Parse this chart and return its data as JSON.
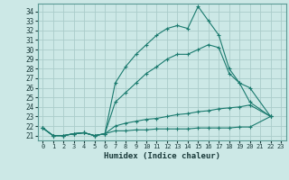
{
  "xlabel": "Humidex (Indice chaleur)",
  "background_color": "#cce8e6",
  "grid_color": "#aaccca",
  "line_color": "#1a7a6e",
  "xlim": [
    -0.5,
    23.5
  ],
  "ylim": [
    20.5,
    34.8
  ],
  "xticks": [
    0,
    1,
    2,
    3,
    4,
    5,
    6,
    7,
    8,
    9,
    10,
    11,
    12,
    13,
    14,
    15,
    16,
    17,
    18,
    19,
    20,
    21,
    22,
    23
  ],
  "yticks": [
    21,
    22,
    23,
    24,
    25,
    26,
    27,
    28,
    29,
    30,
    31,
    32,
    33,
    34
  ],
  "series": [
    {
      "x": [
        0,
        1,
        2,
        3,
        4,
        5,
        6,
        7,
        8,
        9,
        10,
        11,
        12,
        13,
        14,
        15,
        16,
        17,
        18,
        19,
        20,
        22
      ],
      "y": [
        21.8,
        21.0,
        21.0,
        21.2,
        21.3,
        21.0,
        21.2,
        26.5,
        28.2,
        29.5,
        30.5,
        31.5,
        32.2,
        32.5,
        32.2,
        34.5,
        33.0,
        31.5,
        28.0,
        26.5,
        24.5,
        23.0
      ]
    },
    {
      "x": [
        0,
        1,
        2,
        3,
        4,
        5,
        6,
        7,
        8,
        9,
        10,
        11,
        12,
        13,
        14,
        15,
        16,
        17,
        18,
        19,
        20,
        22
      ],
      "y": [
        21.8,
        21.0,
        21.0,
        21.2,
        21.3,
        21.0,
        21.2,
        24.5,
        25.5,
        26.5,
        27.5,
        28.2,
        29.0,
        29.5,
        29.5,
        30.0,
        30.5,
        30.2,
        27.5,
        26.5,
        26.0,
        23.0
      ]
    },
    {
      "x": [
        0,
        1,
        2,
        3,
        4,
        5,
        6,
        7,
        8,
        9,
        10,
        11,
        12,
        13,
        14,
        15,
        16,
        17,
        18,
        19,
        20,
        22
      ],
      "y": [
        21.8,
        21.0,
        21.0,
        21.2,
        21.3,
        21.0,
        21.2,
        22.0,
        22.3,
        22.5,
        22.7,
        22.8,
        23.0,
        23.2,
        23.3,
        23.5,
        23.6,
        23.8,
        23.9,
        24.0,
        24.2,
        23.0
      ]
    },
    {
      "x": [
        0,
        1,
        2,
        3,
        4,
        5,
        6,
        7,
        8,
        9,
        10,
        11,
        12,
        13,
        14,
        15,
        16,
        17,
        18,
        19,
        20,
        22
      ],
      "y": [
        21.8,
        21.0,
        21.0,
        21.2,
        21.3,
        21.0,
        21.2,
        21.5,
        21.5,
        21.6,
        21.6,
        21.7,
        21.7,
        21.7,
        21.7,
        21.8,
        21.8,
        21.8,
        21.8,
        21.9,
        21.9,
        23.0
      ]
    }
  ]
}
